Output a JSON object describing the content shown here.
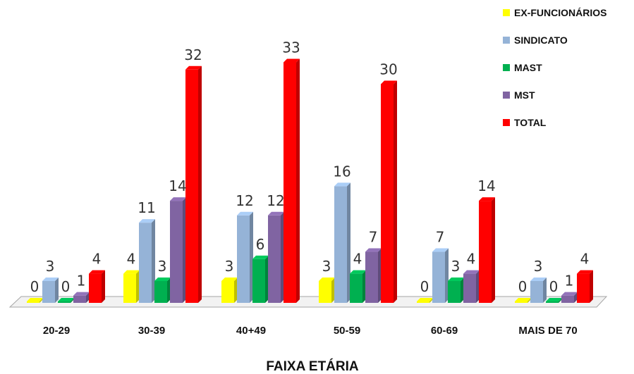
{
  "chart_data": {
    "type": "bar",
    "style": "3d-clustered-column",
    "categories": [
      "20-29",
      "30-39",
      "40+49",
      "50-59",
      "60-69",
      "MAIS DE 70"
    ],
    "series": [
      {
        "name": "EX-FUNCIONÁRIOS",
        "color": "#ffff00",
        "values": [
          0,
          4,
          3,
          3,
          0,
          0
        ]
      },
      {
        "name": "SINDICATO",
        "color": "#95b3d7",
        "values": [
          3,
          11,
          12,
          16,
          7,
          3
        ]
      },
      {
        "name": "MAST",
        "color": "#00b050",
        "values": [
          0,
          3,
          6,
          4,
          3,
          0
        ]
      },
      {
        "name": "MST",
        "color": "#8064a2",
        "values": [
          1,
          14,
          12,
          7,
          4,
          1
        ]
      },
      {
        "name": "TOTAL",
        "color": "#ff0000",
        "values": [
          4,
          32,
          33,
          30,
          14,
          4
        ]
      }
    ],
    "xlabel": "FAIXA ETÁRIA",
    "ylabel": "",
    "ylim": [
      0,
      35
    ],
    "grid": false,
    "legend": "top-right",
    "data_labels": true
  }
}
